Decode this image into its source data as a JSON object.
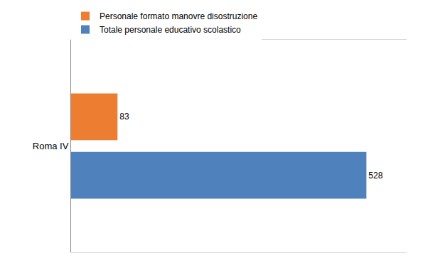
{
  "chart_data": {
    "type": "bar",
    "orientation": "horizontal",
    "categories": [
      "Roma IV"
    ],
    "series": [
      {
        "name": "Personale formato manovre disostruzione",
        "color": "#ed7d31",
        "values": [
          83
        ]
      },
      {
        "name": "Totale personale educativo scolastico",
        "color": "#4f81bd",
        "values": [
          528
        ]
      }
    ],
    "xlim": [
      0,
      600
    ],
    "legend": "top",
    "data_labels": true,
    "tick_labels": "y",
    "grid": false
  }
}
